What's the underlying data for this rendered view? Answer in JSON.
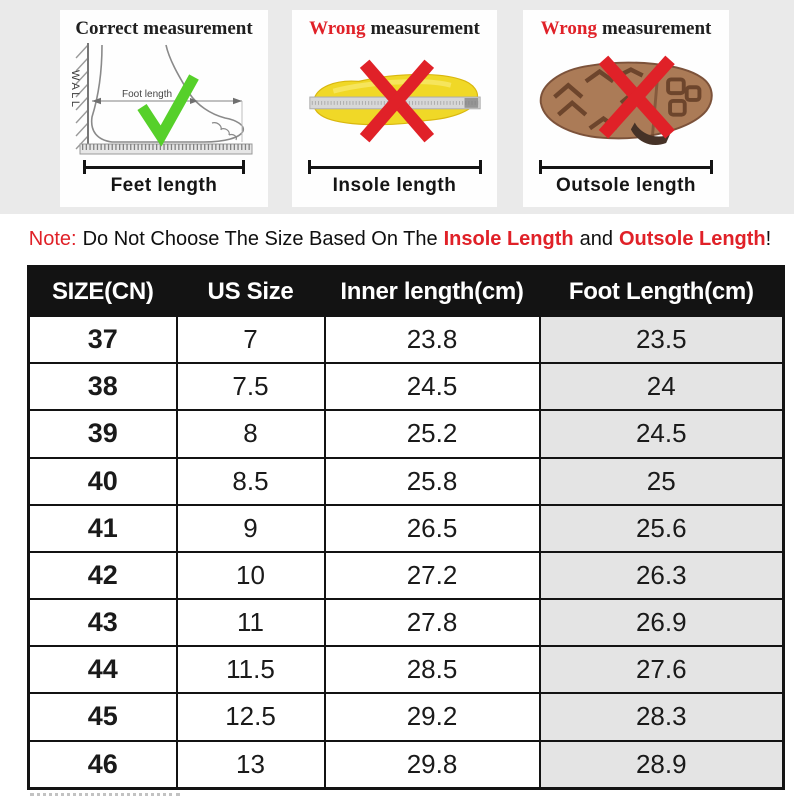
{
  "colors": {
    "accent_red": "#e02128",
    "check_green": "#56d02a",
    "insole_yellow": "#f0d827",
    "outsole_brown": "#ab7b57",
    "band_gray": "#eaeaea",
    "table_header_bg": "#131313",
    "table_border": "#131313",
    "foot_length_col_bg": "#e4e4e4"
  },
  "panels": [
    {
      "title": {
        "highlight": "Correct",
        "rest": "measurement"
      },
      "wall_label": "WALL",
      "foot_length_label": "Foot length",
      "caption": "Feet length"
    },
    {
      "title": {
        "highlight": "Wrong",
        "rest": "measurement"
      },
      "caption": "Insole length"
    },
    {
      "title": {
        "highlight": "Wrong",
        "rest": "measurement"
      },
      "caption": "Outsole length"
    }
  ],
  "note": {
    "label": "Note:",
    "before": "Do Not Choose The Size Based On The",
    "highlight1": "Insole Length",
    "conjunction": "and",
    "highlight2": "Outsole Length",
    "bang": "!"
  },
  "size_table": {
    "headers": [
      "SIZE(CN)",
      "US Size",
      "Inner length(cm)",
      "Foot Length(cm)"
    ],
    "rows": [
      [
        "37",
        "7",
        "23.8",
        "23.5"
      ],
      [
        "38",
        "7.5",
        "24.5",
        "24"
      ],
      [
        "39",
        "8",
        "25.2",
        "24.5"
      ],
      [
        "40",
        "8.5",
        "25.8",
        "25"
      ],
      [
        "41",
        "9",
        "26.5",
        "25.6"
      ],
      [
        "42",
        "10",
        "27.2",
        "26.3"
      ],
      [
        "43",
        "11",
        "27.8",
        "26.9"
      ],
      [
        "44",
        "11.5",
        "28.5",
        "27.6"
      ],
      [
        "45",
        "12.5",
        "29.2",
        "28.3"
      ],
      [
        "46",
        "13",
        "29.8",
        "28.9"
      ]
    ]
  }
}
